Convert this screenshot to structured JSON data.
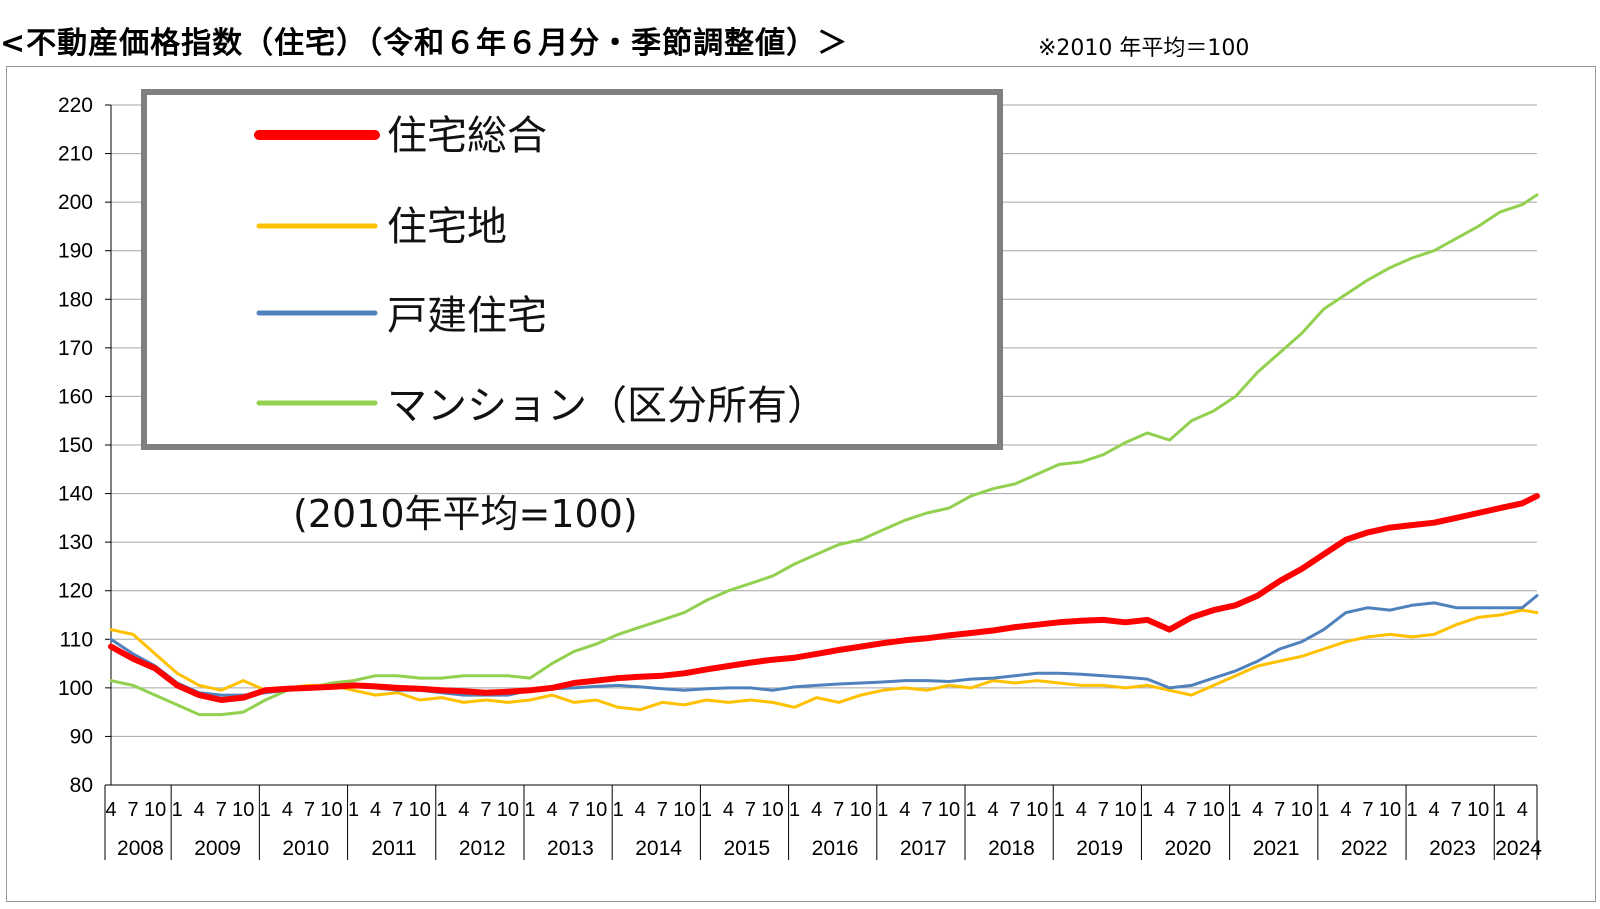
{
  "page": {
    "title": "<不動産価格指数（住宅）（令和６年６月分・季節調整値）＞",
    "note": "※2010 年平均＝100"
  },
  "chart_data": {
    "type": "line",
    "annotation": "(2010年平均=100)",
    "ylim": [
      80,
      220
    ],
    "yticks": [
      80,
      90,
      100,
      110,
      120,
      130,
      140,
      150,
      160,
      170,
      180,
      190,
      200,
      210,
      220
    ],
    "grid": true,
    "legend_position": "top-left",
    "x_start": "2008-04",
    "x_end": "2024-06",
    "month_tick_labels": [
      "1",
      "4",
      "7",
      "10"
    ],
    "years": [
      "2008",
      "2009",
      "2010",
      "2011",
      "2012",
      "2013",
      "2014",
      "2015",
      "2016",
      "2017",
      "2018",
      "2019",
      "2020",
      "2021",
      "2022",
      "2023",
      "2024"
    ],
    "series": [
      {
        "name": "住宅総合",
        "color": "#ff0000",
        "width": 6,
        "points": [
          [
            "2008-04",
            108.5
          ],
          [
            "2008-07",
            106
          ],
          [
            "2008-10",
            104
          ],
          [
            "2009-01",
            100.5
          ],
          [
            "2009-04",
            98.5
          ],
          [
            "2009-07",
            97.5
          ],
          [
            "2009-10",
            98
          ],
          [
            "2010-01",
            99.5
          ],
          [
            "2010-04",
            99.8
          ],
          [
            "2010-07",
            100
          ],
          [
            "2010-10",
            100.2
          ],
          [
            "2011-01",
            100.5
          ],
          [
            "2011-04",
            100.3
          ],
          [
            "2011-07",
            100
          ],
          [
            "2011-10",
            99.8
          ],
          [
            "2012-01",
            99.5
          ],
          [
            "2012-04",
            99.3
          ],
          [
            "2012-07",
            99
          ],
          [
            "2012-10",
            99.2
          ],
          [
            "2013-01",
            99.5
          ],
          [
            "2013-04",
            100
          ],
          [
            "2013-07",
            101
          ],
          [
            "2013-10",
            101.5
          ],
          [
            "2014-01",
            102
          ],
          [
            "2014-04",
            102.3
          ],
          [
            "2014-07",
            102.5
          ],
          [
            "2014-10",
            103
          ],
          [
            "2015-01",
            103.8
          ],
          [
            "2015-04",
            104.5
          ],
          [
            "2015-07",
            105.2
          ],
          [
            "2015-10",
            105.8
          ],
          [
            "2016-01",
            106.2
          ],
          [
            "2016-04",
            107
          ],
          [
            "2016-07",
            107.8
          ],
          [
            "2016-10",
            108.5
          ],
          [
            "2017-01",
            109.2
          ],
          [
            "2017-04",
            109.8
          ],
          [
            "2017-07",
            110.2
          ],
          [
            "2017-10",
            110.8
          ],
          [
            "2018-01",
            111.3
          ],
          [
            "2018-04",
            111.8
          ],
          [
            "2018-07",
            112.5
          ],
          [
            "2018-10",
            113
          ],
          [
            "2019-01",
            113.5
          ],
          [
            "2019-04",
            113.8
          ],
          [
            "2019-07",
            114
          ],
          [
            "2019-10",
            113.5
          ],
          [
            "2020-01",
            114
          ],
          [
            "2020-04",
            112
          ],
          [
            "2020-07",
            114.5
          ],
          [
            "2020-10",
            116
          ],
          [
            "2021-01",
            117
          ],
          [
            "2021-04",
            119
          ],
          [
            "2021-07",
            122
          ],
          [
            "2021-10",
            124.5
          ],
          [
            "2022-01",
            127.5
          ],
          [
            "2022-04",
            130.5
          ],
          [
            "2022-07",
            132
          ],
          [
            "2022-10",
            133
          ],
          [
            "2023-01",
            133.5
          ],
          [
            "2023-04",
            134
          ],
          [
            "2023-07",
            135
          ],
          [
            "2023-10",
            136
          ],
          [
            "2024-01",
            137
          ],
          [
            "2024-04",
            138
          ],
          [
            "2024-06",
            139.5
          ]
        ]
      },
      {
        "name": "住宅地",
        "color": "#ffc000",
        "width": 3,
        "points": [
          [
            "2008-04",
            112
          ],
          [
            "2008-07",
            111
          ],
          [
            "2008-10",
            107
          ],
          [
            "2009-01",
            103
          ],
          [
            "2009-04",
            100.5
          ],
          [
            "2009-07",
            99.5
          ],
          [
            "2009-10",
            101.5
          ],
          [
            "2010-01",
            99.5
          ],
          [
            "2010-04",
            100
          ],
          [
            "2010-07",
            100.5
          ],
          [
            "2010-10",
            100.5
          ],
          [
            "2011-01",
            99.5
          ],
          [
            "2011-04",
            98.5
          ],
          [
            "2011-07",
            99
          ],
          [
            "2011-10",
            97.5
          ],
          [
            "2012-01",
            98
          ],
          [
            "2012-04",
            97
          ],
          [
            "2012-07",
            97.5
          ],
          [
            "2012-10",
            97
          ],
          [
            "2013-01",
            97.5
          ],
          [
            "2013-04",
            98.5
          ],
          [
            "2013-07",
            97
          ],
          [
            "2013-10",
            97.5
          ],
          [
            "2014-01",
            96
          ],
          [
            "2014-04",
            95.5
          ],
          [
            "2014-07",
            97
          ],
          [
            "2014-10",
            96.5
          ],
          [
            "2015-01",
            97.5
          ],
          [
            "2015-04",
            97
          ],
          [
            "2015-07",
            97.5
          ],
          [
            "2015-10",
            97
          ],
          [
            "2016-01",
            96
          ],
          [
            "2016-04",
            98
          ],
          [
            "2016-07",
            97
          ],
          [
            "2016-10",
            98.5
          ],
          [
            "2017-01",
            99.5
          ],
          [
            "2017-04",
            100
          ],
          [
            "2017-07",
            99.5
          ],
          [
            "2017-10",
            100.5
          ],
          [
            "2018-01",
            100
          ],
          [
            "2018-04",
            101.5
          ],
          [
            "2018-07",
            101
          ],
          [
            "2018-10",
            101.5
          ],
          [
            "2019-01",
            101
          ],
          [
            "2019-04",
            100.5
          ],
          [
            "2019-07",
            100.5
          ],
          [
            "2019-10",
            100
          ],
          [
            "2020-01",
            100.5
          ],
          [
            "2020-04",
            99.5
          ],
          [
            "2020-07",
            98.5
          ],
          [
            "2020-10",
            100.5
          ],
          [
            "2021-01",
            102.5
          ],
          [
            "2021-04",
            104.5
          ],
          [
            "2021-07",
            105.5
          ],
          [
            "2021-10",
            106.5
          ],
          [
            "2022-01",
            108
          ],
          [
            "2022-04",
            109.5
          ],
          [
            "2022-07",
            110.5
          ],
          [
            "2022-10",
            111
          ],
          [
            "2023-01",
            110.5
          ],
          [
            "2023-04",
            111
          ],
          [
            "2023-07",
            113
          ],
          [
            "2023-10",
            114.5
          ],
          [
            "2024-01",
            115
          ],
          [
            "2024-04",
            116
          ],
          [
            "2024-06",
            115.5
          ]
        ]
      },
      {
        "name": "戸建住宅",
        "color": "#4f81bd",
        "width": 3,
        "points": [
          [
            "2008-04",
            110
          ],
          [
            "2008-07",
            107
          ],
          [
            "2008-10",
            104.5
          ],
          [
            "2009-01",
            101
          ],
          [
            "2009-04",
            99
          ],
          [
            "2009-07",
            98.5
          ],
          [
            "2009-10",
            98.5
          ],
          [
            "2010-01",
            99
          ],
          [
            "2010-04",
            99.5
          ],
          [
            "2010-07",
            100
          ],
          [
            "2010-10",
            100.5
          ],
          [
            "2011-01",
            100.5
          ],
          [
            "2011-04",
            100
          ],
          [
            "2011-07",
            99.5
          ],
          [
            "2011-10",
            99.5
          ],
          [
            "2012-01",
            99
          ],
          [
            "2012-04",
            98.5
          ],
          [
            "2012-07",
            98.5
          ],
          [
            "2012-10",
            98.5
          ],
          [
            "2013-01",
            99.5
          ],
          [
            "2013-04",
            99.8
          ],
          [
            "2013-07",
            100
          ],
          [
            "2013-10",
            100.3
          ],
          [
            "2014-01",
            100.5
          ],
          [
            "2014-04",
            100.2
          ],
          [
            "2014-07",
            99.8
          ],
          [
            "2014-10",
            99.5
          ],
          [
            "2015-01",
            99.8
          ],
          [
            "2015-04",
            100
          ],
          [
            "2015-07",
            100
          ],
          [
            "2015-10",
            99.5
          ],
          [
            "2016-01",
            100.2
          ],
          [
            "2016-04",
            100.5
          ],
          [
            "2016-07",
            100.8
          ],
          [
            "2016-10",
            101
          ],
          [
            "2017-01",
            101.2
          ],
          [
            "2017-04",
            101.5
          ],
          [
            "2017-07",
            101.5
          ],
          [
            "2017-10",
            101.3
          ],
          [
            "2018-01",
            101.8
          ],
          [
            "2018-04",
            102
          ],
          [
            "2018-07",
            102.5
          ],
          [
            "2018-10",
            103
          ],
          [
            "2019-01",
            103
          ],
          [
            "2019-04",
            102.8
          ],
          [
            "2019-07",
            102.5
          ],
          [
            "2019-10",
            102.2
          ],
          [
            "2020-01",
            101.8
          ],
          [
            "2020-04",
            100
          ],
          [
            "2020-07",
            100.5
          ],
          [
            "2020-10",
            102
          ],
          [
            "2021-01",
            103.5
          ],
          [
            "2021-04",
            105.5
          ],
          [
            "2021-07",
            108
          ],
          [
            "2021-10",
            109.5
          ],
          [
            "2022-01",
            112
          ],
          [
            "2022-04",
            115.5
          ],
          [
            "2022-07",
            116.5
          ],
          [
            "2022-10",
            116
          ],
          [
            "2023-01",
            117
          ],
          [
            "2023-04",
            117.5
          ],
          [
            "2023-07",
            116.5
          ],
          [
            "2023-10",
            116.5
          ],
          [
            "2024-01",
            116.5
          ],
          [
            "2024-04",
            116.5
          ],
          [
            "2024-06",
            119
          ]
        ]
      },
      {
        "name": "マンション（区分所有）",
        "color": "#92d050",
        "width": 3,
        "points": [
          [
            "2008-04",
            101.5
          ],
          [
            "2008-07",
            100.5
          ],
          [
            "2008-10",
            98.5
          ],
          [
            "2009-01",
            96.5
          ],
          [
            "2009-04",
            94.5
          ],
          [
            "2009-07",
            94.5
          ],
          [
            "2009-10",
            95
          ],
          [
            "2010-01",
            97.5
          ],
          [
            "2010-04",
            99.5
          ],
          [
            "2010-07",
            100
          ],
          [
            "2010-10",
            101
          ],
          [
            "2011-01",
            101.5
          ],
          [
            "2011-04",
            102.5
          ],
          [
            "2011-07",
            102.5
          ],
          [
            "2011-10",
            102
          ],
          [
            "2012-01",
            102
          ],
          [
            "2012-04",
            102.5
          ],
          [
            "2012-07",
            102.5
          ],
          [
            "2012-10",
            102.5
          ],
          [
            "2013-01",
            102
          ],
          [
            "2013-04",
            105
          ],
          [
            "2013-07",
            107.5
          ],
          [
            "2013-10",
            109
          ],
          [
            "2014-01",
            111
          ],
          [
            "2014-04",
            112.5
          ],
          [
            "2014-07",
            114
          ],
          [
            "2014-10",
            115.5
          ],
          [
            "2015-01",
            118
          ],
          [
            "2015-04",
            120
          ],
          [
            "2015-07",
            121.5
          ],
          [
            "2015-10",
            123
          ],
          [
            "2016-01",
            125.5
          ],
          [
            "2016-04",
            127.5
          ],
          [
            "2016-07",
            129.5
          ],
          [
            "2016-10",
            130.5
          ],
          [
            "2017-01",
            132.5
          ],
          [
            "2017-04",
            134.5
          ],
          [
            "2017-07",
            136
          ],
          [
            "2017-10",
            137
          ],
          [
            "2018-01",
            139.5
          ],
          [
            "2018-04",
            141
          ],
          [
            "2018-07",
            142
          ],
          [
            "2018-10",
            144
          ],
          [
            "2019-01",
            146
          ],
          [
            "2019-04",
            146.5
          ],
          [
            "2019-07",
            148
          ],
          [
            "2019-10",
            150.5
          ],
          [
            "2020-01",
            152.5
          ],
          [
            "2020-04",
            151
          ],
          [
            "2020-07",
            155
          ],
          [
            "2020-10",
            157
          ],
          [
            "2021-01",
            160
          ],
          [
            "2021-04",
            165
          ],
          [
            "2021-07",
            169
          ],
          [
            "2021-10",
            173
          ],
          [
            "2022-01",
            178
          ],
          [
            "2022-04",
            181
          ],
          [
            "2022-07",
            184
          ],
          [
            "2022-10",
            186.5
          ],
          [
            "2023-01",
            188.5
          ],
          [
            "2023-04",
            190
          ],
          [
            "2023-07",
            192.5
          ],
          [
            "2023-10",
            195
          ],
          [
            "2024-01",
            198
          ],
          [
            "2024-04",
            199.5
          ],
          [
            "2024-06",
            201.5
          ]
        ]
      }
    ]
  }
}
